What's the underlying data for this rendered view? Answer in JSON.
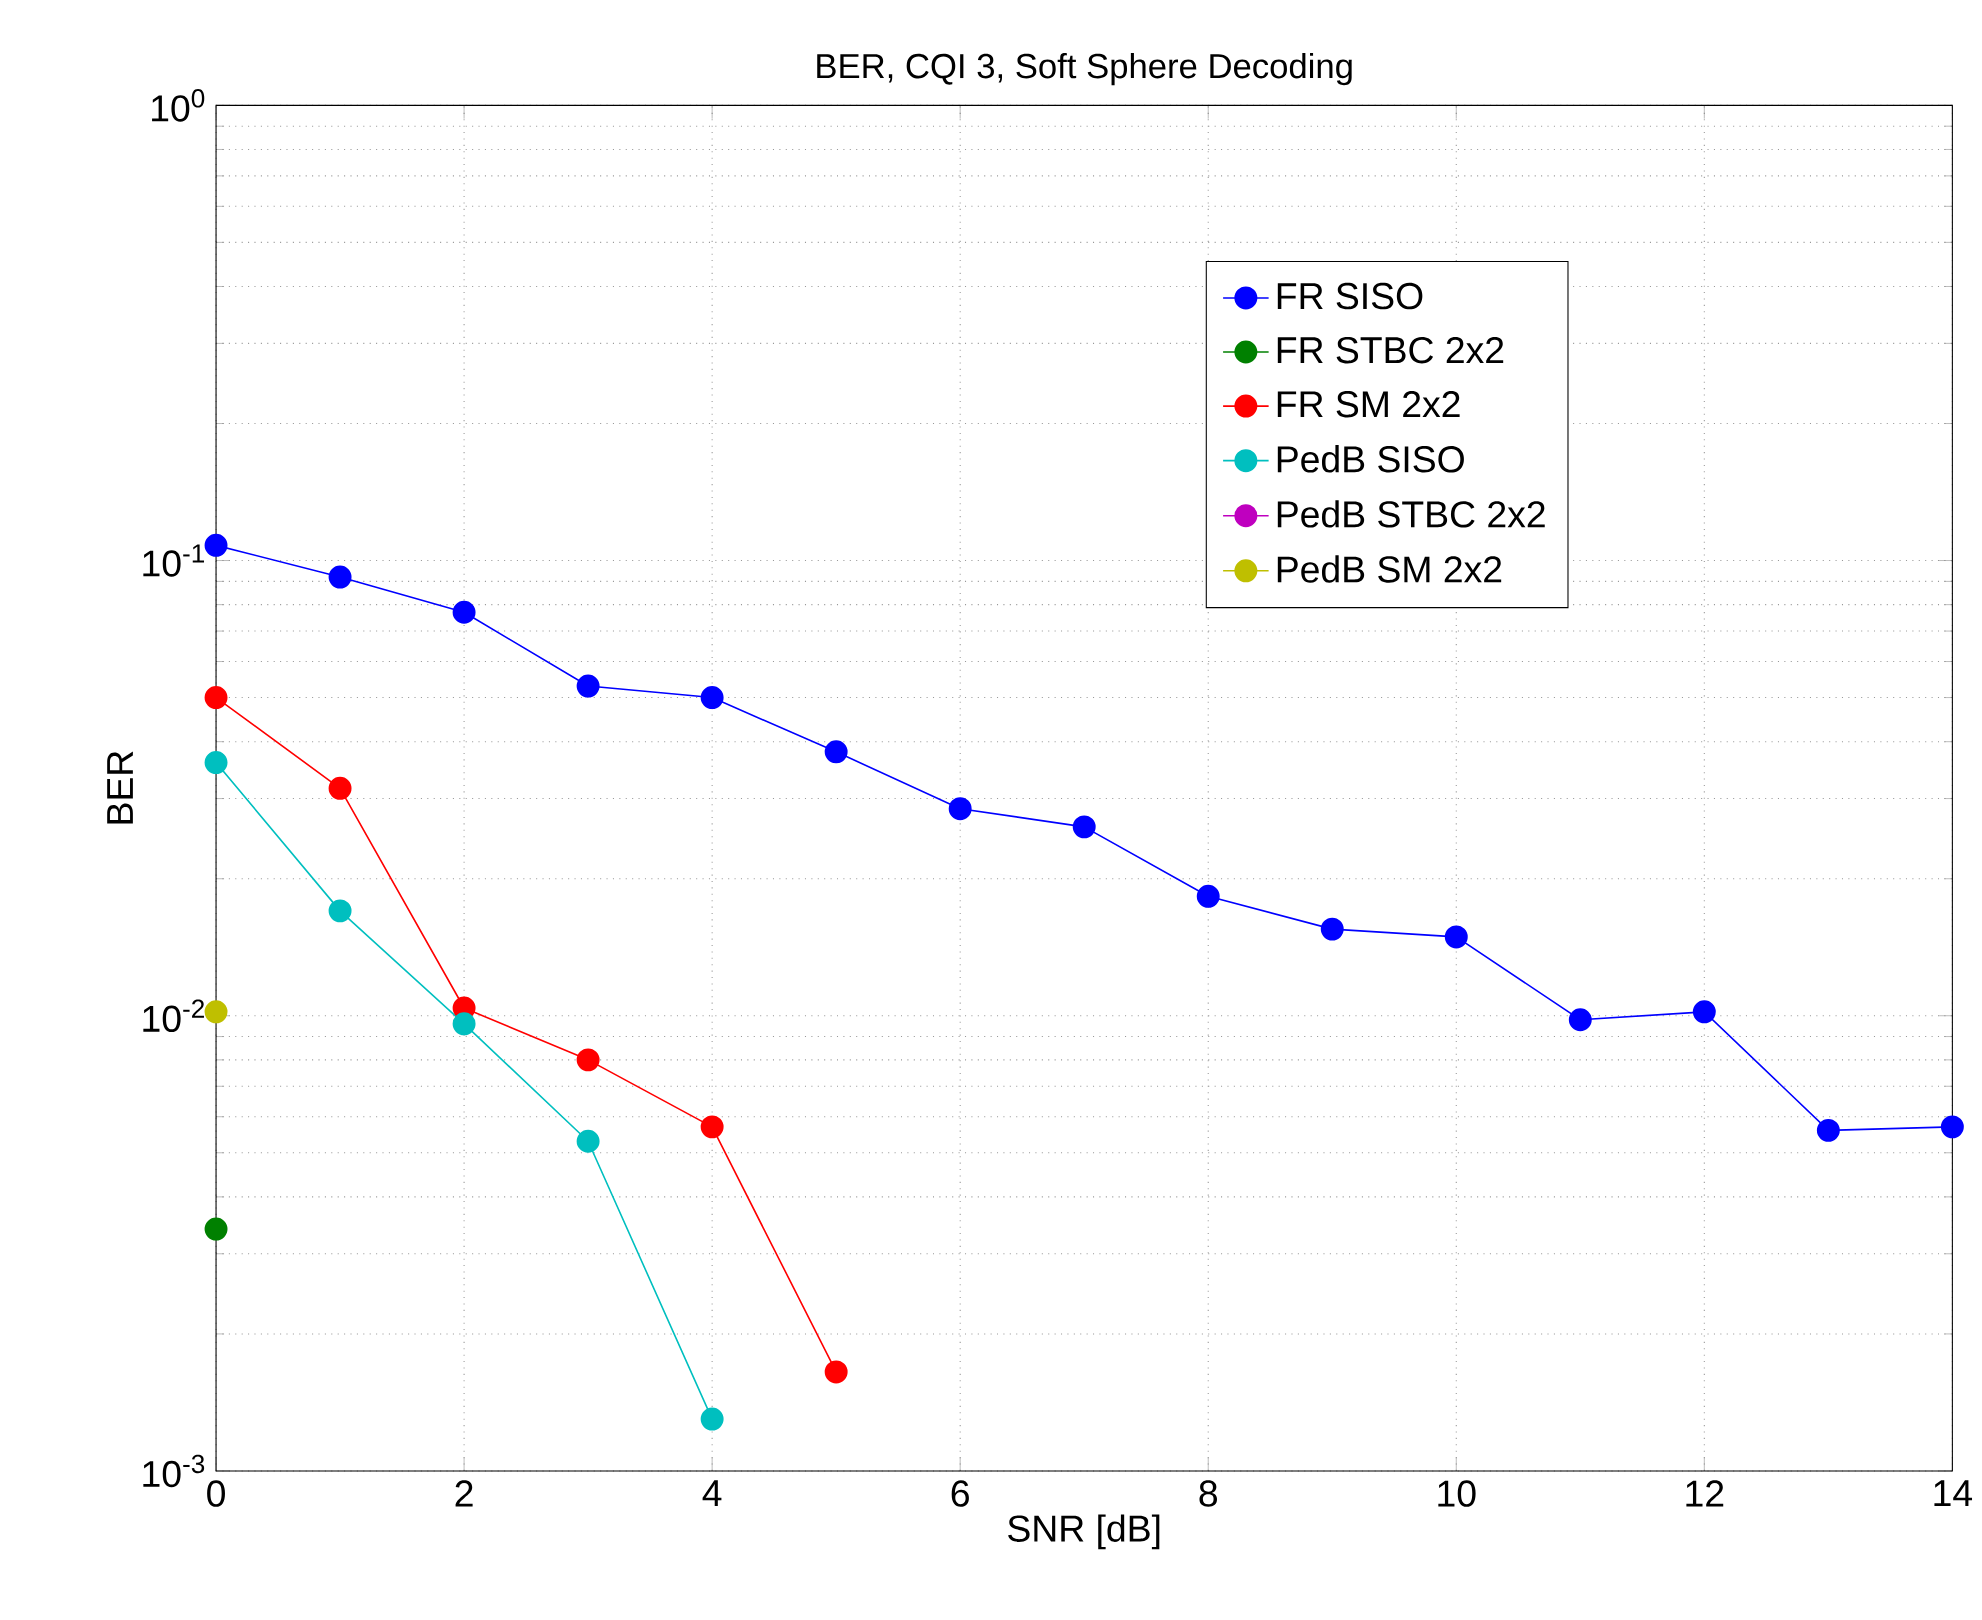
{
  "chart_data": {
    "type": "line",
    "title": "BER, CQI 3,  Soft Sphere Decoding",
    "xlabel": "SNR [dB]",
    "ylabel": "BER",
    "xlim": [
      0,
      14
    ],
    "xticks": [
      0,
      2,
      4,
      6,
      8,
      10,
      12,
      14
    ],
    "ylim": [
      0.001,
      1
    ],
    "yticks": [
      {
        "value": 0.001,
        "label": "10$^{-3}$"
      },
      {
        "value": 0.01,
        "label": "10$^{-2}$"
      },
      {
        "value": 0.1,
        "label": "10$^{-1}$"
      },
      {
        "value": 1,
        "label": "10$^{0}$"
      }
    ],
    "log": "y",
    "grid": true,
    "legend": "top right",
    "marker": "circle",
    "line_style": "solid",
    "series": [
      {
        "name": "FR SISO",
        "color": "#0000ff",
        "x": [
          0,
          1,
          2,
          3,
          4,
          5,
          6,
          7,
          8,
          9,
          10,
          11,
          12,
          13,
          14
        ],
        "values": [
          0.108,
          0.092,
          0.077,
          0.053,
          0.05,
          0.038,
          0.0285,
          0.026,
          0.0183,
          0.0155,
          0.0149,
          0.0098,
          0.0102,
          0.0056,
          0.0057
        ]
      },
      {
        "name": "FR STBC 2x2",
        "color": "#008000",
        "x": [
          0
        ],
        "values": [
          0.0034
        ]
      },
      {
        "name": "FR SM 2x2",
        "color": "#ff0000",
        "x": [
          0,
          1,
          2,
          3,
          4,
          5
        ],
        "values": [
          0.05,
          0.0316,
          0.0104,
          0.008,
          0.0057,
          0.00165
        ]
      },
      {
        "name": "PedB SISO",
        "color": "#00bfbf",
        "x": [
          0,
          1,
          2,
          3,
          4
        ],
        "values": [
          0.036,
          0.017,
          0.0096,
          0.0053,
          0.0013
        ]
      },
      {
        "name": "PedB STBC 2x2",
        "color": "#bf00bf"
      },
      {
        "name": "PedB SM 2x2",
        "color": "#bfbf00",
        "x": [
          0
        ],
        "values": [
          0.0102
        ]
      }
    ]
  }
}
